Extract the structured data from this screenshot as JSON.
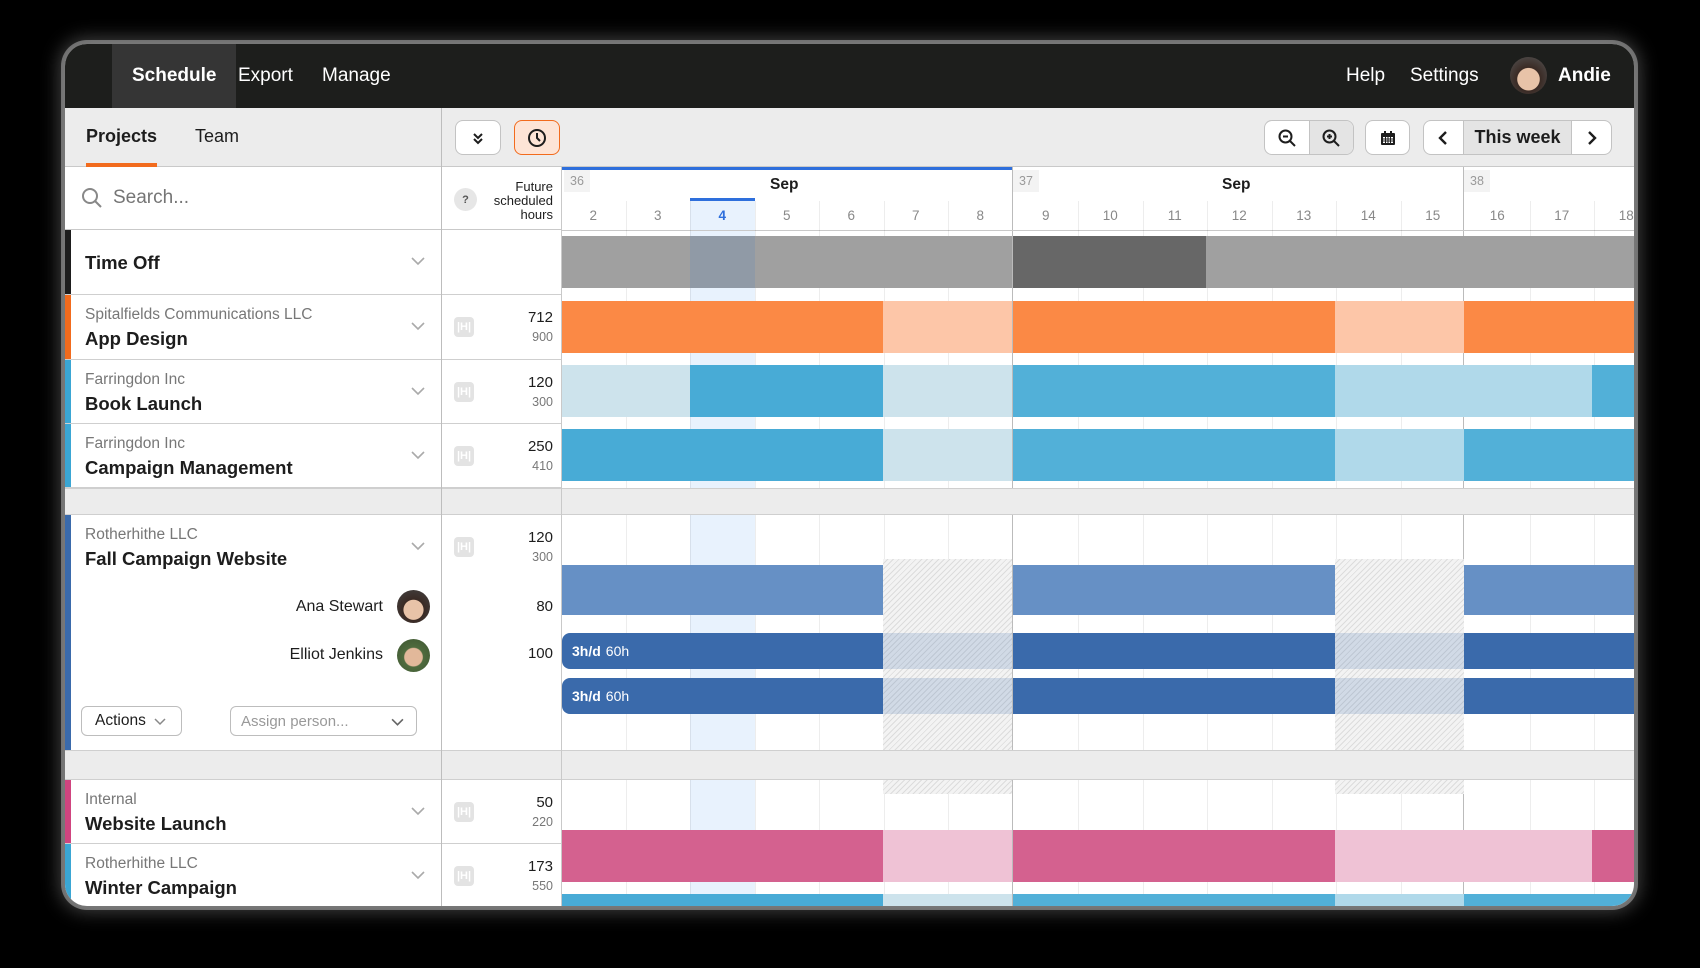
{
  "nav": {
    "tabs": [
      {
        "label": "Schedule",
        "active": true
      },
      {
        "label": "Export"
      },
      {
        "label": "Manage"
      }
    ],
    "help": "Help",
    "settings": "Settings",
    "user": "Andie"
  },
  "panel_tabs": [
    {
      "label": "Projects",
      "active": true
    },
    {
      "label": "Team"
    }
  ],
  "toolbar": {
    "collapse_icon": "chevrons-down-icon",
    "clock_icon": "clock-icon",
    "zoom_out_icon": "zoom-out-icon",
    "zoom_in_icon": "zoom-in-icon",
    "calendar_icon": "calendar-icon",
    "this_week": "This week"
  },
  "search": {
    "placeholder": "Search..."
  },
  "hours_header": {
    "help": "?",
    "label_lines": [
      "Future",
      "scheduled",
      "hours"
    ]
  },
  "timeline": {
    "weeks": [
      {
        "number": "36",
        "month": "Sep",
        "days": [
          "2",
          "3",
          "4",
          "5",
          "6",
          "7",
          "8"
        ]
      },
      {
        "number": "37",
        "month": "Sep",
        "days": [
          "9",
          "10",
          "11",
          "12",
          "13",
          "14",
          "15"
        ]
      },
      {
        "number": "38",
        "month": "",
        "days": [
          "16",
          "17",
          "18"
        ]
      }
    ],
    "today": "4",
    "accent": "#2e6fdc"
  },
  "rows": [
    {
      "type": "timeoff",
      "name": "Time Off",
      "color": "#1d1d1d"
    },
    {
      "client": "Spitalfields Communications LLC",
      "name": "App Design",
      "scheduled": "712",
      "total": "900",
      "color": "#f26b1d"
    },
    {
      "client": "Farringdon Inc",
      "name": "Book Launch",
      "scheduled": "120",
      "total": "300",
      "color": "#3aa6d4"
    },
    {
      "client": "Farringdon Inc",
      "name": "Campaign Management",
      "scheduled": "250",
      "total": "410",
      "color": "#3aa6d4"
    },
    {
      "client": "Rotherhithe LLC",
      "name": "Fall Campaign Website",
      "scheduled": "120",
      "total": "300",
      "color": "#3a6aab",
      "people": [
        {
          "name": "Ana Stewart",
          "hours": "80",
          "rate": "3h/d",
          "alloc": "60h"
        },
        {
          "name": "Elliot Jenkins",
          "hours": "100",
          "rate": "3h/d",
          "alloc": "60h"
        }
      ],
      "actions": "Actions",
      "assign_placeholder": "Assign person..."
    },
    {
      "client": "Internal",
      "name": "Website Launch",
      "scheduled": "50",
      "total": "220",
      "color": "#d0447f"
    },
    {
      "client": "Rotherhithe LLC",
      "name": "Winter Campaign",
      "scheduled": "173",
      "total": "550",
      "color": "#3aa6d4"
    }
  ]
}
